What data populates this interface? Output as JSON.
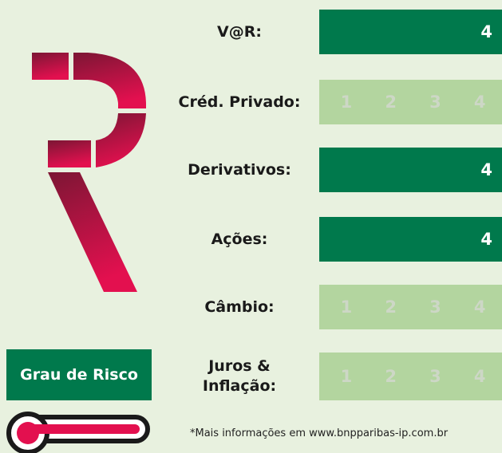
{
  "title": "Grau de Risco",
  "rows": [
    {
      "label": "V@R:",
      "level": 4
    },
    {
      "label": "Créd. Privado:",
      "scale": [
        1,
        2,
        3,
        4
      ]
    },
    {
      "label": "Derivativos:",
      "level": 4
    },
    {
      "label": "Ações:",
      "level": 4
    },
    {
      "label": "Câmbio:",
      "scale": [
        1,
        2,
        3,
        4
      ]
    },
    {
      "label": "Juros & Inflação:",
      "scale": [
        1,
        2,
        3,
        4
      ]
    }
  ],
  "footnote": "*Mais informações em www.bnpparibas-ip.com.br"
}
